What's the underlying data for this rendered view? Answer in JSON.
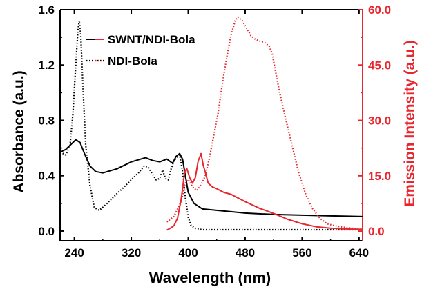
{
  "chart_data": {
    "type": "line",
    "xlabel": "Wavelength (nm)",
    "ylabel_left": "Absorbance (a.u.)",
    "ylabel_right": "Emission Intensity (a.u.)",
    "xlim": [
      220,
      645
    ],
    "ylim_left": [
      -0.07,
      1.6
    ],
    "ylim_right": [
      -2.6,
      60
    ],
    "xticks": [
      "240",
      "320",
      "400",
      "480",
      "560",
      "640"
    ],
    "xtick_values": [
      240,
      320,
      400,
      480,
      560,
      640
    ],
    "yticks_left": [
      "0.0",
      "0.4",
      "0.8",
      "1.2",
      "1.6"
    ],
    "ytick_values_left": [
      0.0,
      0.4,
      0.8,
      1.2,
      1.6
    ],
    "yticks_right": [
      "0.0",
      "15.0",
      "30.0",
      "45.0",
      "60.0"
    ],
    "ytick_values_right": [
      0,
      15,
      30,
      45,
      60
    ],
    "colors": {
      "absorbance": "#000000",
      "emission": "#e8262d",
      "axis_left": "#000000",
      "axis_right": "#e8262d"
    },
    "legend_position": "top-center",
    "legend": [
      {
        "label": "SWNT/NDI-Bola",
        "style": "solid"
      },
      {
        "label": "NDI-Bola",
        "style": "dotted"
      }
    ],
    "series": [
      {
        "name": "SWNT/NDI-Bola",
        "axis": "left",
        "color": "#000000",
        "style": "solid",
        "x": [
          220,
          228,
          236,
          242,
          248,
          255,
          262,
          270,
          280,
          300,
          320,
          340,
          350,
          360,
          370,
          378,
          383,
          388,
          392,
          396,
          400,
          408,
          420,
          440,
          480,
          520,
          560,
          600,
          645
        ],
        "y": [
          0.57,
          0.59,
          0.63,
          0.66,
          0.64,
          0.55,
          0.47,
          0.43,
          0.42,
          0.45,
          0.5,
          0.53,
          0.51,
          0.5,
          0.52,
          0.49,
          0.54,
          0.56,
          0.52,
          0.4,
          0.28,
          0.2,
          0.16,
          0.15,
          0.13,
          0.12,
          0.115,
          0.11,
          0.105
        ]
      },
      {
        "name": "NDI-Bola",
        "axis": "left",
        "color": "#000000",
        "style": "dotted",
        "x": [
          220,
          228,
          234,
          238,
          242,
          245,
          247,
          249,
          252,
          256,
          262,
          268,
          275,
          282,
          290,
          300,
          310,
          320,
          330,
          338,
          344,
          350,
          355,
          360,
          364,
          368,
          372,
          376,
          380,
          384,
          388,
          392,
          396,
          400,
          404,
          410,
          420,
          440,
          480,
          520,
          560,
          600,
          645
        ],
        "y": [
          0.57,
          0.55,
          0.62,
          0.85,
          1.2,
          1.45,
          1.52,
          1.42,
          1.05,
          0.62,
          0.33,
          0.17,
          0.15,
          0.18,
          0.22,
          0.27,
          0.32,
          0.37,
          0.42,
          0.47,
          0.46,
          0.41,
          0.37,
          0.38,
          0.44,
          0.38,
          0.37,
          0.45,
          0.51,
          0.53,
          0.55,
          0.43,
          0.24,
          0.1,
          0.04,
          0.02,
          0.01,
          0.01,
          0.01,
          0.01,
          0.01,
          0.01,
          0.01
        ]
      },
      {
        "name": "SWNT/NDI-Bola emission",
        "axis": "right",
        "color": "#e8262d",
        "style": "solid",
        "x": [
          370,
          375,
          380,
          385,
          390,
          395,
          398,
          402,
          406,
          410,
          414,
          418,
          421,
          424,
          428,
          434,
          440,
          450,
          460,
          480,
          500,
          520,
          540,
          560,
          580,
          600,
          620,
          645
        ],
        "y": [
          0.3,
          0.8,
          1.5,
          3.5,
          8.5,
          16.0,
          17.0,
          14.5,
          13.0,
          14.5,
          19.0,
          21.0,
          18.0,
          16.0,
          13.0,
          12.0,
          11.5,
          10.5,
          10.0,
          8.0,
          6.2,
          4.8,
          3.2,
          2.0,
          1.2,
          0.8,
          0.6,
          0.5
        ]
      },
      {
        "name": "NDI-Bola emission",
        "axis": "right",
        "color": "#e8262d",
        "style": "dotted",
        "x": [
          370,
          380,
          390,
          396,
          400,
          406,
          412,
          418,
          424,
          430,
          436,
          442,
          448,
          454,
          460,
          466,
          470,
          476,
          482,
          488,
          494,
          500,
          508,
          514,
          518,
          522,
          528,
          535,
          545,
          555,
          565,
          575,
          585,
          595,
          605,
          620,
          645
        ],
        "y": [
          2.5,
          4.0,
          8.0,
          13.0,
          14.0,
          12.0,
          11.0,
          12.5,
          15.0,
          20.0,
          26.0,
          32.0,
          40.0,
          47.0,
          53.0,
          57.0,
          58.0,
          57.0,
          55.0,
          53.0,
          52.0,
          51.5,
          51.0,
          50.0,
          48.0,
          44.0,
          38.0,
          32.0,
          24.0,
          16.0,
          10.0,
          6.0,
          3.5,
          2.0,
          1.5,
          1.0,
          0.5
        ]
      }
    ]
  }
}
